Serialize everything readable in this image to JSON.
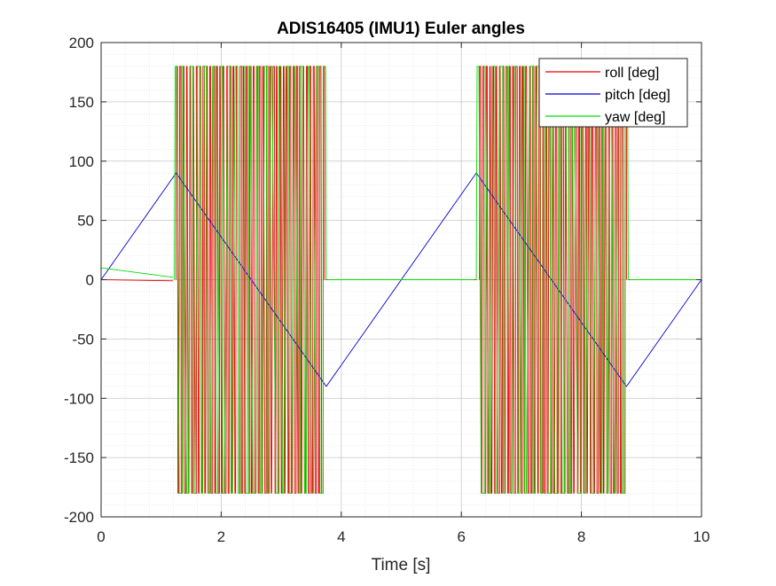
{
  "chart_data": {
    "type": "line",
    "title": "ADIS16405 (IMU1) Euler angles",
    "xlabel": "Time [s]",
    "ylabel": "",
    "xlim": [
      0,
      10
    ],
    "ylim": [
      -200,
      200
    ],
    "xticks": [
      0,
      2,
      4,
      6,
      8,
      10
    ],
    "yticks": [
      -200,
      -150,
      -100,
      -50,
      0,
      50,
      100,
      150,
      200
    ],
    "xtick_labels": [
      "0",
      "2",
      "4",
      "6",
      "8",
      "10"
    ],
    "ytick_labels": [
      "-200",
      "-150",
      "-100",
      "-50",
      "0",
      "50",
      "100",
      "150",
      "200"
    ],
    "grid": true,
    "minor_grid": true,
    "legend_position": "top-right",
    "series": [
      {
        "name": "roll [deg]",
        "color": "#e60000",
        "segments": [
          {
            "kind": "line",
            "x": [
              0,
              1.2
            ],
            "y": [
              0,
              -1
            ]
          },
          {
            "kind": "wrap",
            "x_range": [
              1.25,
              3.72
            ],
            "y_low": -180,
            "y_high": 180,
            "transitions": 88
          },
          {
            "kind": "line",
            "x": [
              3.74,
              6.25
            ],
            "y": [
              0,
              0
            ]
          },
          {
            "kind": "wrap",
            "x_range": [
              6.3,
              8.75
            ],
            "y_low": -180,
            "y_high": 180,
            "transitions": 88
          },
          {
            "kind": "line",
            "x": [
              8.78,
              10
            ],
            "y": [
              0,
              0
            ]
          }
        ]
      },
      {
        "name": "pitch [deg]",
        "color": "#0000cc",
        "segments": [
          {
            "kind": "line",
            "x": [
              0,
              1.25,
              3.75,
              6.25,
              8.75,
              10
            ],
            "y": [
              0,
              90,
              -90,
              90,
              -90,
              0
            ]
          }
        ]
      },
      {
        "name": "yaw [deg]",
        "color": "#00dd00",
        "segments": [
          {
            "kind": "line",
            "x": [
              0,
              1.2
            ],
            "y": [
              10,
              2
            ]
          },
          {
            "kind": "wrap",
            "x_range": [
              1.22,
              3.75
            ],
            "y_low": -180,
            "y_high": 180,
            "transitions": 40
          },
          {
            "kind": "line",
            "x": [
              3.76,
              6.22
            ],
            "y": [
              0,
              0
            ]
          },
          {
            "kind": "wrap",
            "x_range": [
              6.25,
              8.78
            ],
            "y_low": -180,
            "y_high": 180,
            "transitions": 40
          },
          {
            "kind": "line",
            "x": [
              8.8,
              10
            ],
            "y": [
              0,
              0
            ]
          }
        ]
      }
    ]
  }
}
